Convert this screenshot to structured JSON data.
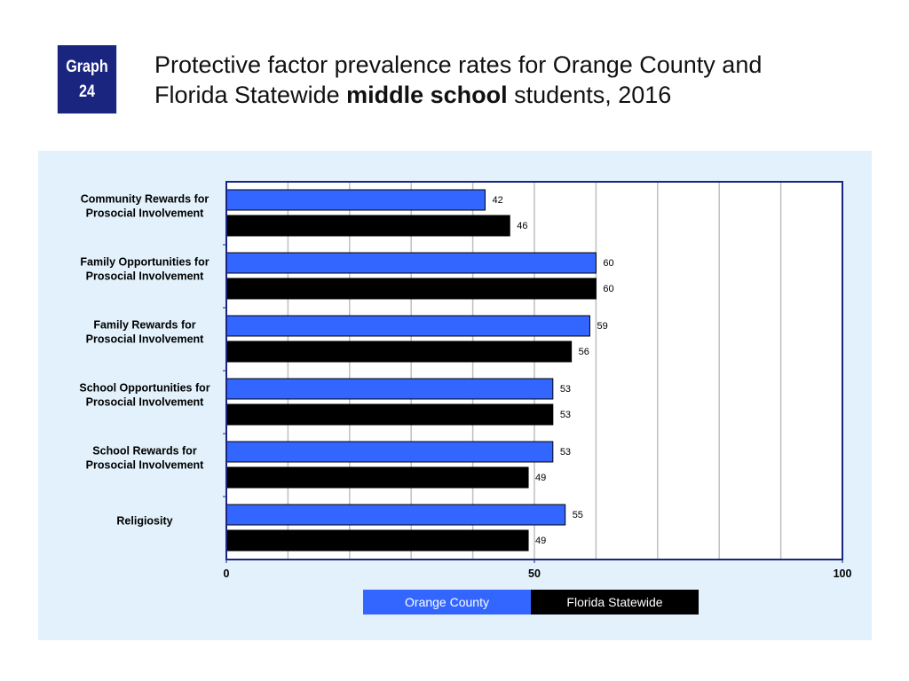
{
  "badge": {
    "line1": "Graph",
    "line2": "24"
  },
  "title": {
    "part1": "Protective factor prevalence rates for Orange County and",
    "part2": "Florida Statewide ",
    "bold": "middle school",
    "part3": " students, 2016"
  },
  "colors": {
    "orange_county": "#3366ff",
    "florida_statewide": "#000000",
    "panel": "#e2f1fb",
    "frame": "#1a2580"
  },
  "chart_data": {
    "type": "bar",
    "orientation": "horizontal",
    "categories": [
      [
        "Community Rewards for",
        "Prosocial Involvement"
      ],
      [
        "Family Opportunities for",
        "Prosocial Involvement"
      ],
      [
        "Family Rewards for",
        "Prosocial Involvement"
      ],
      [
        "School Opportunities for",
        "Prosocial Involvement"
      ],
      [
        "School Rewards for",
        "Prosocial Involvement"
      ],
      [
        "Religiosity"
      ]
    ],
    "series": [
      {
        "name": "Orange County",
        "color": "#3366ff",
        "values": [
          42,
          60,
          59,
          53,
          53,
          55
        ]
      },
      {
        "name": "Florida Statewide",
        "color": "#000000",
        "values": [
          46,
          60,
          56,
          53,
          49,
          49
        ]
      }
    ],
    "xlim": [
      0,
      100
    ],
    "xticks": [
      "0",
      "50",
      "100"
    ],
    "grid": true,
    "legend": "bottom-center"
  }
}
